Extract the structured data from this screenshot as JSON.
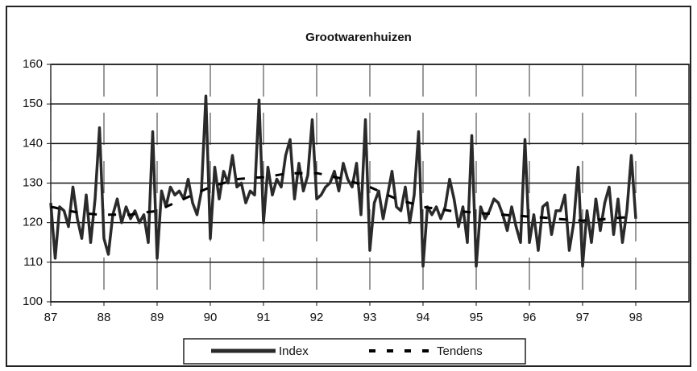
{
  "chart_data": {
    "type": "line",
    "title": "Grootwarenhuizen",
    "categories": [
      "87",
      null,
      null,
      null,
      null,
      null,
      null,
      null,
      null,
      null,
      null,
      null,
      "88",
      null,
      null,
      null,
      null,
      null,
      null,
      null,
      null,
      null,
      null,
      null,
      "89",
      null,
      null,
      null,
      null,
      null,
      null,
      null,
      null,
      null,
      null,
      null,
      "90",
      null,
      null,
      null,
      null,
      null,
      null,
      null,
      null,
      null,
      null,
      null,
      "91",
      null,
      null,
      null,
      null,
      null,
      null,
      null,
      null,
      null,
      null,
      null,
      "92",
      null,
      null,
      null,
      null,
      null,
      null,
      null,
      null,
      null,
      null,
      null,
      "93",
      null,
      null,
      null,
      null,
      null,
      null,
      null,
      null,
      null,
      null,
      null,
      "94",
      null,
      null,
      null,
      null,
      null,
      null,
      null,
      null,
      null,
      null,
      null,
      "95",
      null,
      null,
      null,
      null,
      null,
      null,
      null,
      null,
      null,
      null,
      null,
      "96",
      null,
      null,
      null,
      null,
      null,
      null,
      null,
      null,
      null,
      null,
      null,
      "97",
      null,
      null,
      null,
      null,
      null,
      null,
      null,
      null,
      null,
      null,
      null,
      "98"
    ],
    "series": [
      {
        "name": "Index",
        "color": "#2a2a2a",
        "style": "solid",
        "values": [
          125,
          111,
          124,
          123,
          119,
          129,
          121,
          116,
          127,
          115,
          126,
          144,
          116,
          112,
          122,
          126,
          120,
          124,
          121,
          123,
          120,
          122,
          115,
          143,
          111,
          128,
          124,
          129,
          127,
          128,
          126,
          131,
          125,
          122,
          128,
          152,
          116,
          134,
          126,
          133,
          130,
          137,
          129,
          130,
          125,
          128,
          127,
          151,
          120,
          134,
          127,
          131,
          129,
          137,
          141,
          126,
          135,
          128,
          132,
          146,
          126,
          127,
          129,
          130,
          133,
          128,
          135,
          131,
          129,
          135,
          122,
          146,
          113,
          125,
          128,
          121,
          127,
          133,
          124,
          123,
          129,
          120,
          127,
          143,
          109,
          124,
          122,
          124,
          121,
          124,
          131,
          126,
          119,
          124,
          115,
          142,
          109,
          124,
          121,
          123,
          126,
          125,
          122,
          118,
          124,
          119,
          115,
          141,
          115,
          122,
          113,
          124,
          125,
          117,
          123,
          123,
          127,
          113,
          120,
          134,
          109,
          123,
          115,
          126,
          118,
          125,
          129,
          117,
          126,
          115,
          123,
          137,
          121
        ]
      },
      {
        "name": "Tendens",
        "color": "#000000",
        "style": "dashed",
        "values": [
          124.0,
          123.8,
          123.5,
          123.2,
          123.0,
          122.8,
          122.6,
          122.4,
          122.3,
          122.2,
          122.1,
          122.0,
          122.0,
          122.0,
          122.0,
          122.0,
          122.0,
          122.0,
          122.0,
          122.2,
          122.3,
          122.5,
          122.7,
          122.8,
          123.0,
          123.5,
          124.0,
          124.5,
          125.0,
          125.5,
          126.0,
          126.5,
          127.0,
          127.5,
          128.0,
          128.5,
          129.0,
          129.3,
          129.7,
          130.0,
          130.3,
          130.7,
          131.0,
          131.1,
          131.2,
          131.3,
          131.4,
          131.4,
          131.5,
          131.7,
          131.8,
          132.0,
          132.2,
          132.3,
          132.5,
          132.5,
          132.5,
          132.5,
          132.5,
          132.5,
          132.5,
          132.3,
          132.0,
          131.8,
          131.5,
          131.3,
          131.0,
          130.7,
          130.3,
          130.0,
          129.7,
          129.3,
          129.0,
          128.5,
          128.0,
          127.5,
          127.0,
          126.5,
          126.0,
          125.7,
          125.3,
          125.0,
          124.7,
          124.3,
          124.0,
          123.8,
          123.7,
          123.5,
          123.3,
          123.2,
          123.0,
          122.9,
          122.8,
          122.8,
          122.7,
          122.6,
          122.5,
          122.4,
          122.3,
          122.3,
          122.2,
          122.1,
          122.0,
          121.9,
          121.8,
          121.8,
          121.7,
          121.6,
          121.5,
          121.4,
          121.3,
          121.3,
          121.2,
          121.1,
          121.0,
          120.9,
          120.8,
          120.8,
          120.7,
          120.6,
          120.5,
          120.6,
          120.7,
          120.8,
          120.8,
          120.9,
          121.0,
          121.1,
          121.2,
          121.3,
          121.3,
          121.4,
          121.5
        ]
      }
    ],
    "ylim": [
      100,
      160
    ],
    "yticks": [
      100,
      110,
      120,
      130,
      140,
      150,
      160
    ],
    "grid": true,
    "legend": "bottom"
  }
}
